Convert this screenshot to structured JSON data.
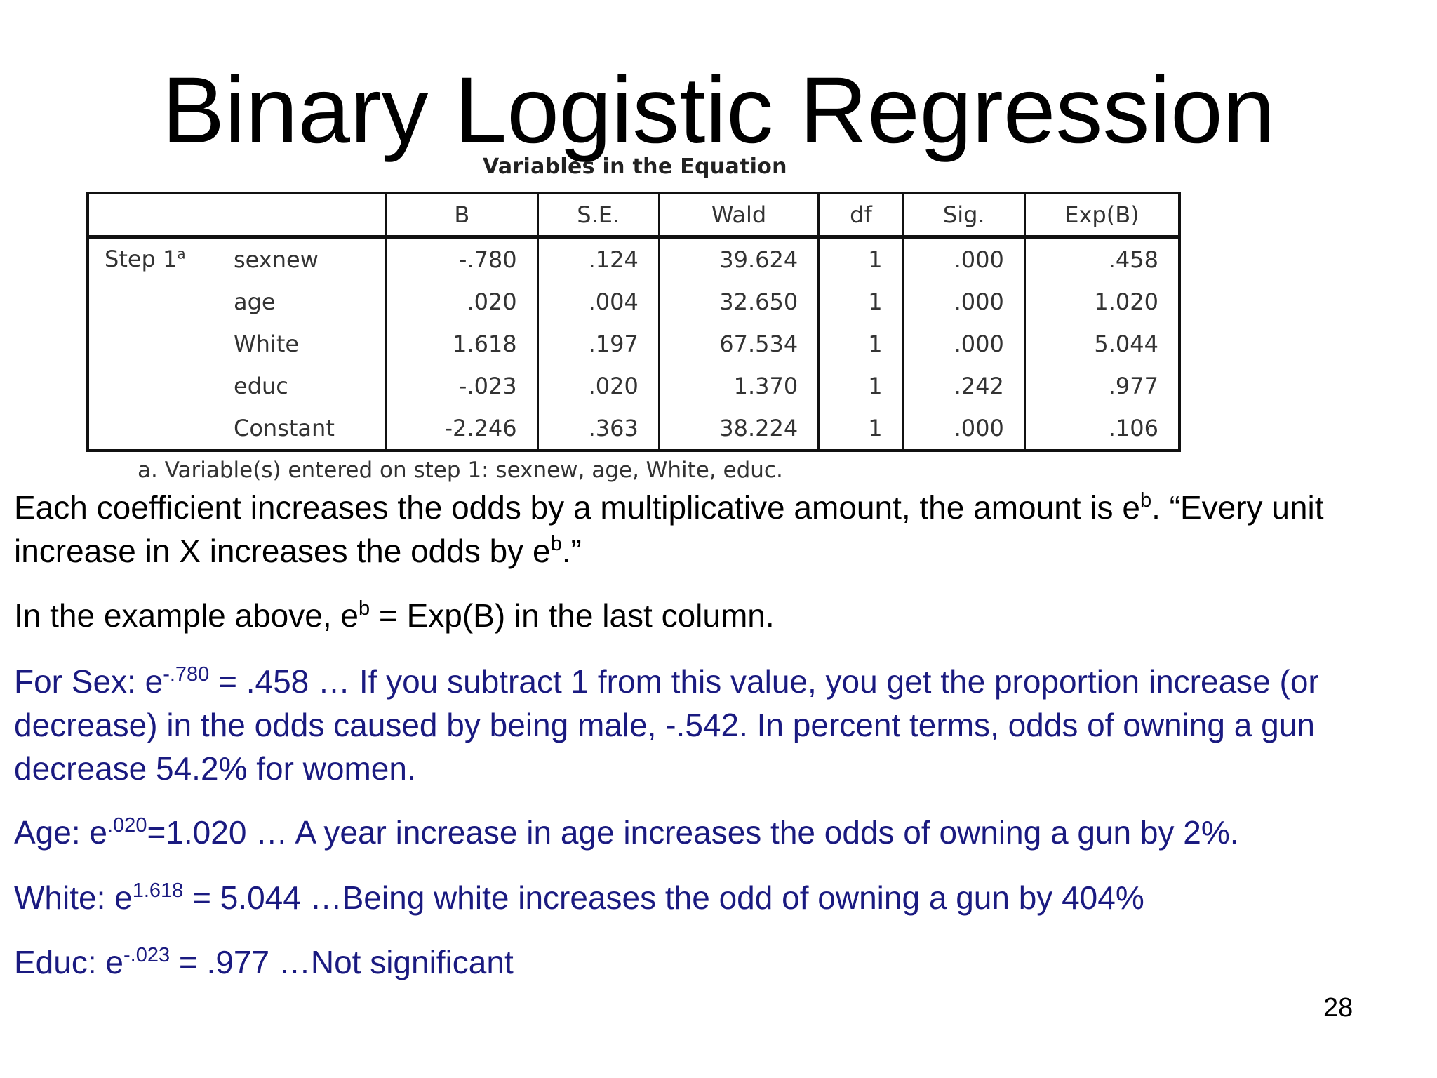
{
  "slide": {
    "title": "Binary Logistic Regression",
    "page_number": "28"
  },
  "table": {
    "caption": "Variables in the Equation",
    "headers": [
      "B",
      "S.E.",
      "Wald",
      "df",
      "Sig.",
      "Exp(B)"
    ],
    "step_label": "Step 1",
    "step_superscript": "a",
    "rows": [
      {
        "name": "sexnew",
        "values": [
          "-.780",
          ".124",
          "39.624",
          "1",
          ".000",
          ".458"
        ]
      },
      {
        "name": "age",
        "values": [
          ".020",
          ".004",
          "32.650",
          "1",
          ".000",
          "1.020"
        ]
      },
      {
        "name": "White",
        "values": [
          "1.618",
          ".197",
          "67.534",
          "1",
          ".000",
          "5.044"
        ]
      },
      {
        "name": "educ",
        "values": [
          "-.023",
          ".020",
          "1.370",
          "1",
          ".242",
          ".977"
        ]
      },
      {
        "name": "Constant",
        "values": [
          "-2.246",
          ".363",
          "38.224",
          "1",
          ".000",
          ".106"
        ]
      }
    ],
    "footnote": "a. Variable(s) entered on step 1: sexnew, age, White, educ."
  },
  "paragraphs": {
    "p1": {
      "a": "Each coefficient increases the odds by a multiplicative amount, the amount is e",
      "sup1": "b",
      "b": ".  “Every unit increase in X increases the odds by e",
      "sup2": "b",
      "c": ".”"
    },
    "p2": {
      "a": "In the example above, e",
      "sup": "b",
      "b": " = Exp(B) in the last column."
    },
    "sex": {
      "a": "For Sex:  e",
      "sup": "-.780",
      "b": " = .458 … If you subtract 1 from this value, you get the proportion increase (or decrease) in the odds caused by being male, -.542.  In percent terms, odds of owning a gun decrease 54.2% for women."
    },
    "age": {
      "a": "Age: e",
      "sup": ".020",
      "b": "=1.020 … A year increase in age increases the odds of owning a gun by 2%."
    },
    "white": {
      "a": "White:  e",
      "sup": "1.618",
      "b": " = 5.044 …Being white increases the odd of owning a gun by 404%"
    },
    "educ": {
      "a": "Educ:  e",
      "sup": "-.023",
      "b": " = .977 …Not significant"
    }
  }
}
